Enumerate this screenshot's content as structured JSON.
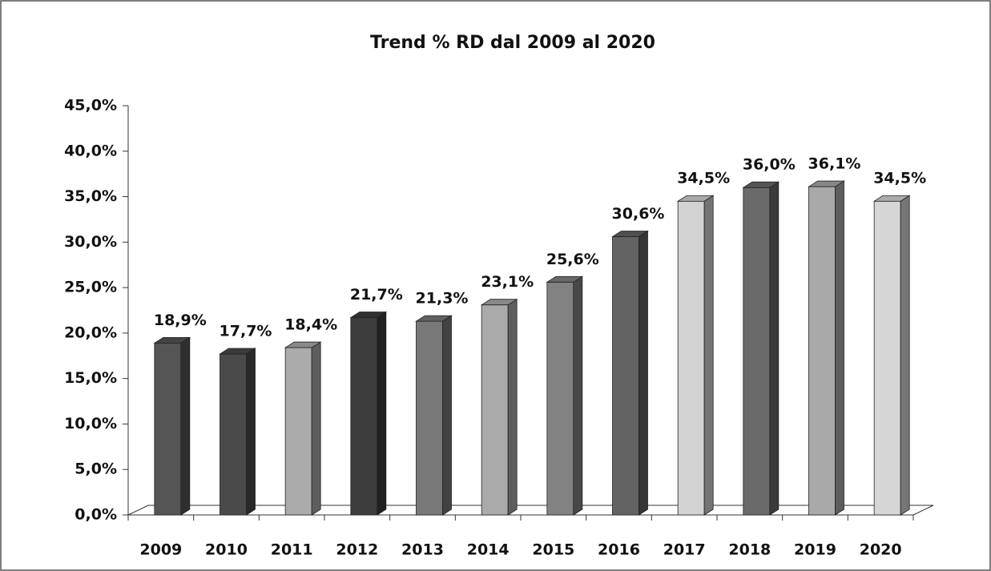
{
  "chart_data": {
    "type": "bar3d",
    "title": "Trend % RD dal 2009 al 2020",
    "categories": [
      "2009",
      "2010",
      "2011",
      "2012",
      "2013",
      "2014",
      "2015",
      "2016",
      "2017",
      "2018",
      "2019",
      "2020"
    ],
    "values": [
      18.9,
      17.7,
      18.4,
      21.7,
      21.3,
      23.1,
      25.6,
      30.6,
      34.5,
      36.0,
      36.1,
      34.5
    ],
    "value_labels": [
      "18,9%",
      "17,7%",
      "18,4%",
      "21,7%",
      "21,3%",
      "23,1%",
      "25,6%",
      "30,6%",
      "34,5%",
      "36,0%",
      "36,1%",
      "34,5%"
    ],
    "colors": [
      "#555555",
      "#4a4a4a",
      "#ababab",
      "#3c3c3c",
      "#787878",
      "#aaaaaa",
      "#828282",
      "#636363",
      "#d2d2d2",
      "#6a6a6a",
      "#a9a9a9",
      "#d6d6d6"
    ],
    "ylim": [
      0,
      45
    ],
    "yticks": [
      {
        "value": 0,
        "label": "0,0%"
      },
      {
        "value": 5,
        "label": "5,0%"
      },
      {
        "value": 10,
        "label": "10,0%"
      },
      {
        "value": 15,
        "label": "15,0%"
      },
      {
        "value": 20,
        "label": "20,0%"
      },
      {
        "value": 25,
        "label": "25,0%"
      },
      {
        "value": 30,
        "label": "30,0%"
      },
      {
        "value": 35,
        "label": "35,0%"
      },
      {
        "value": 40,
        "label": "40,0%"
      },
      {
        "value": 45,
        "label": "45,0%"
      }
    ],
    "grid": false
  }
}
